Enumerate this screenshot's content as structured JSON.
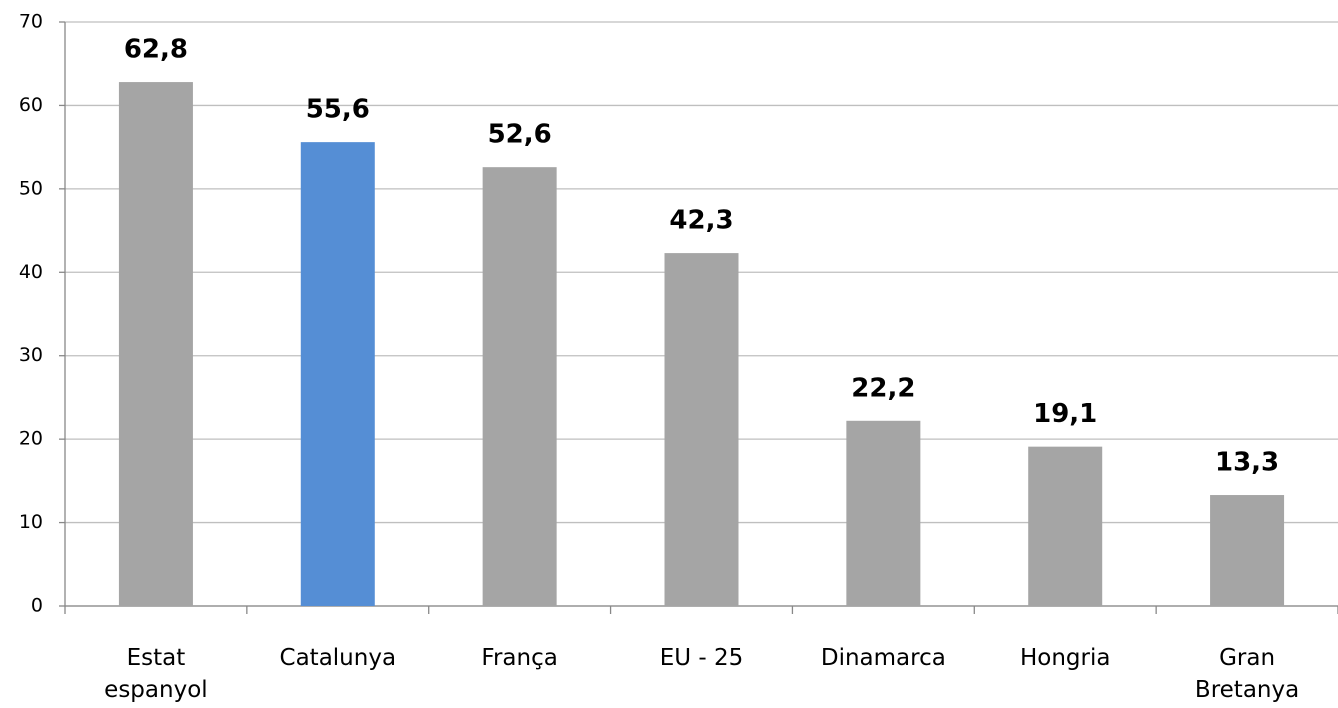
{
  "chart_data": {
    "type": "bar",
    "categories": [
      "Estat espanyol",
      "Catalunya",
      "França",
      "EU - 25",
      "Dinamarca",
      "Hongria",
      "Gran Bretanya"
    ],
    "values": [
      62.8,
      55.6,
      52.6,
      42.3,
      22.2,
      19.1,
      13.3
    ],
    "value_labels": [
      "62,8",
      "55,6",
      "52,6",
      "42,3",
      "22,2",
      "19,1",
      "13,3"
    ],
    "colors": [
      "#a5a5a5",
      "#558ed5",
      "#a5a5a5",
      "#a5a5a5",
      "#a5a5a5",
      "#a5a5a5",
      "#a5a5a5"
    ],
    "ylim": [
      0,
      70
    ],
    "yticks": [
      0,
      10,
      20,
      30,
      40,
      50,
      60,
      70
    ],
    "grid": true
  }
}
